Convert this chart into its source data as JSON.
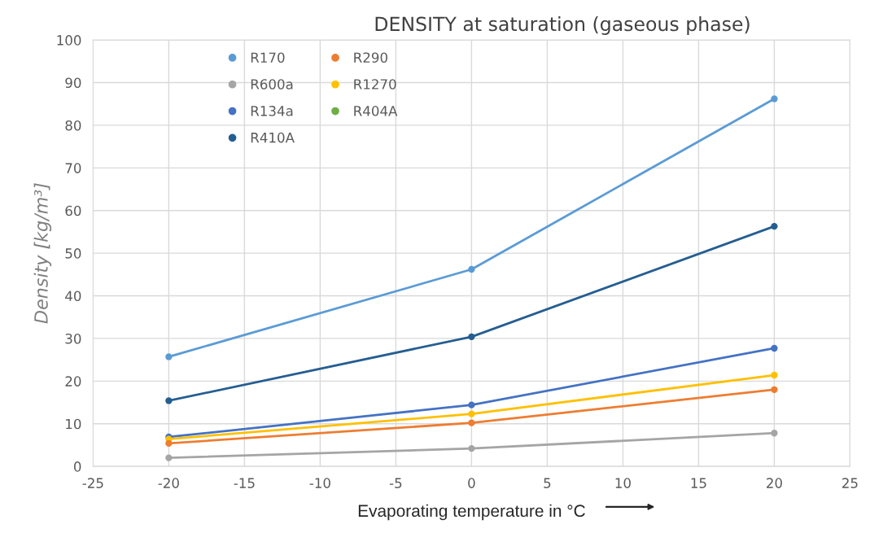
{
  "chart_data": {
    "type": "line",
    "title": "DENSITY at saturation (gaseous phase)",
    "xlabel": "Evaporating temperature in °C",
    "ylabel": "Density [kg/m³]",
    "x": [
      -20,
      0,
      20
    ],
    "xlim": [
      -25,
      25
    ],
    "xticks": [
      -25,
      -20,
      -15,
      -10,
      -5,
      0,
      5,
      10,
      15,
      20,
      25
    ],
    "ylim": [
      0,
      100
    ],
    "yticks": [
      0,
      10,
      20,
      30,
      40,
      50,
      60,
      70,
      80,
      90,
      100
    ],
    "grid": true,
    "legend": "top left",
    "marker": "circle",
    "line_style": "solid",
    "series": [
      {
        "name": "R170",
        "color": "#5b9bd5",
        "values": [
          25.7,
          46.2,
          86.2
        ]
      },
      {
        "name": "R290",
        "color": "#ed7d31",
        "values": [
          5.4,
          10.2,
          18.0
        ]
      },
      {
        "name": "R600a",
        "color": "#a5a5a5",
        "values": [
          2.0,
          4.2,
          7.8
        ]
      },
      {
        "name": "R1270",
        "color": "#ffc000",
        "values": [
          6.4,
          12.3,
          21.4
        ]
      },
      {
        "name": "R134a",
        "color": "#4472c4",
        "values": [
          6.9,
          14.4,
          27.7
        ]
      },
      {
        "name": "R404A",
        "color": "#70ad47",
        "values": [
          null,
          null,
          null
        ]
      },
      {
        "name": "R410A",
        "color": "#255e91",
        "values": [
          15.4,
          30.4,
          56.3
        ]
      }
    ]
  }
}
